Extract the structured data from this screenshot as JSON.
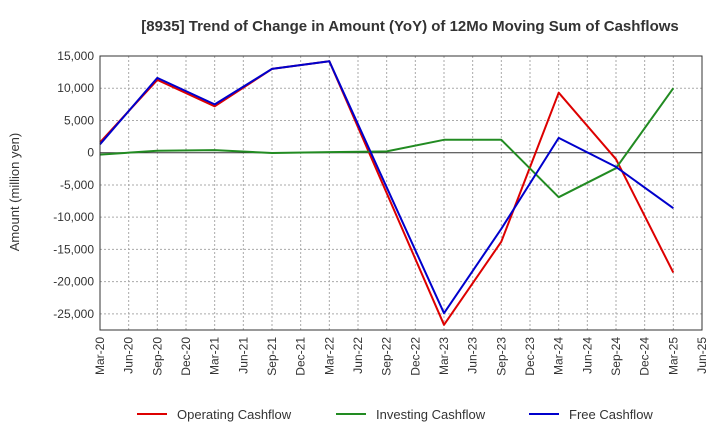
{
  "chart_data": {
    "type": "line",
    "title": "[8935]  Trend of Change in Amount (YoY) of 12Mo Moving Sum of Cashflows",
    "xlabel": "",
    "ylabel": "Amount (million yen)",
    "ylim": [
      -27500,
      15000
    ],
    "yticks": [
      15000,
      10000,
      5000,
      0,
      -5000,
      -10000,
      -15000,
      -20000,
      -25000
    ],
    "ytick_labels": [
      "15,000",
      "10,000",
      "5,000",
      "0",
      "-5,000",
      "-10,000",
      "-15,000",
      "-20,000",
      "-25,000"
    ],
    "categories": [
      "Mar-20",
      "Jun-20",
      "Sep-20",
      "Dec-20",
      "Mar-21",
      "Jun-21",
      "Sep-21",
      "Dec-21",
      "Mar-22",
      "Jun-22",
      "Sep-22",
      "Dec-22",
      "Mar-23",
      "Jun-23",
      "Sep-23",
      "Dec-23",
      "Mar-24",
      "Jun-24",
      "Sep-24",
      "Dec-24",
      "Mar-25",
      "Jun-25"
    ],
    "grid": true,
    "legend_position": "bottom",
    "series": [
      {
        "name": "Operating Cashflow",
        "color": "#dd0000",
        "values": [
          1600,
          null,
          11300,
          null,
          7200,
          null,
          13000,
          null,
          14200,
          null,
          null,
          null,
          -26700,
          null,
          -13800,
          null,
          9300,
          null,
          -1000,
          null,
          -18600,
          null
        ]
      },
      {
        "name": "Investing Cashflow",
        "color": "#228b22",
        "values": [
          -300,
          null,
          300,
          null,
          400,
          null,
          -50,
          null,
          100,
          null,
          200,
          null,
          2000,
          null,
          2000,
          null,
          -6900,
          null,
          -2400,
          null,
          10000,
          null
        ]
      },
      {
        "name": "Free Cashflow",
        "color": "#0000cc",
        "values": [
          1300,
          null,
          11600,
          null,
          7500,
          null,
          13000,
          null,
          14200,
          null,
          null,
          null,
          -24900,
          null,
          -11800,
          null,
          2300,
          null,
          -2200,
          null,
          -8600,
          null
        ]
      }
    ]
  }
}
